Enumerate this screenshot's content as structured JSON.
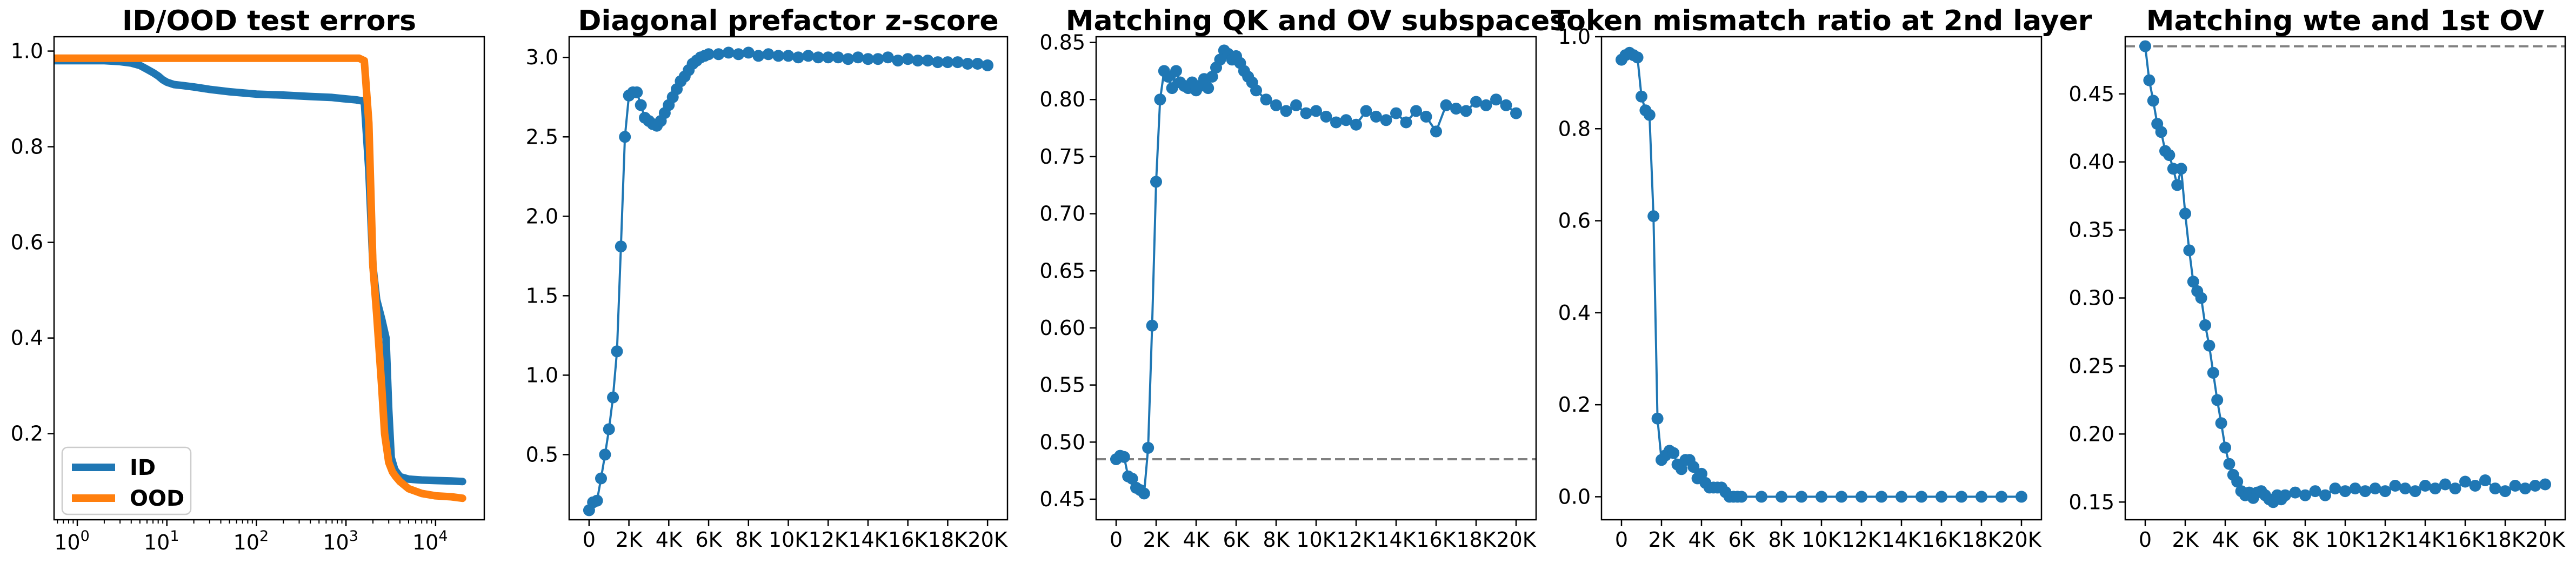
{
  "chart_data": [
    {
      "type": "line",
      "title": "ID/OOD test errors",
      "xscale": "log",
      "xlim": [
        0.55,
        35000
      ],
      "ylim": [
        0.02,
        1.03
      ],
      "x_ticks": [
        1,
        10,
        100,
        1000,
        10000
      ],
      "x_tick_labels": [
        {
          "b": "10",
          "e": "0"
        },
        {
          "b": "10",
          "e": "1"
        },
        {
          "b": "10",
          "e": "2"
        },
        {
          "b": "10",
          "e": "3"
        },
        {
          "b": "10",
          "e": "4"
        }
      ],
      "y_ticks": [
        0.2,
        0.4,
        0.6,
        0.8,
        1.0
      ],
      "y_tick_labels": [
        "0.2",
        "0.4",
        "0.6",
        "0.8",
        "1.0"
      ],
      "legend_position": "lower-left",
      "series": [
        {
          "name": "ID",
          "color": "#1f77b4",
          "x": [
            0.55,
            1,
            2,
            3,
            4,
            5,
            6,
            7,
            8,
            9,
            10,
            12,
            15,
            20,
            30,
            50,
            100,
            200,
            400,
            700,
            1000,
            1300,
            1600,
            1800,
            2000,
            2200,
            2500,
            2800,
            3000,
            3200,
            3500,
            4000,
            5000,
            7000,
            10000,
            15000,
            20000
          ],
          "y": [
            0.98,
            0.98,
            0.98,
            0.978,
            0.975,
            0.97,
            0.962,
            0.955,
            0.948,
            0.94,
            0.935,
            0.93,
            0.928,
            0.925,
            0.92,
            0.915,
            0.91,
            0.908,
            0.905,
            0.903,
            0.9,
            0.898,
            0.895,
            0.75,
            0.55,
            0.48,
            0.44,
            0.4,
            0.25,
            0.15,
            0.125,
            0.11,
            0.105,
            0.103,
            0.102,
            0.101,
            0.1
          ]
        },
        {
          "name": "OOD",
          "color": "#ff7f0e",
          "x": [
            0.55,
            1,
            10,
            100,
            1000,
            1400,
            1600,
            1800,
            2000,
            2200,
            2500,
            2700,
            3000,
            3300,
            3600,
            4000,
            5000,
            7000,
            10000,
            15000,
            20000
          ],
          "y": [
            0.985,
            0.985,
            0.985,
            0.985,
            0.985,
            0.985,
            0.98,
            0.85,
            0.55,
            0.45,
            0.3,
            0.2,
            0.14,
            0.12,
            0.11,
            0.1,
            0.085,
            0.075,
            0.07,
            0.068,
            0.065
          ]
        }
      ]
    },
    {
      "type": "line",
      "title": "Diagonal prefactor z-score",
      "xlim": [
        -1000,
        21000
      ],
      "ylim": [
        0.09,
        3.13
      ],
      "x_ticks": [
        0,
        2000,
        4000,
        6000,
        8000,
        10000,
        12000,
        14000,
        16000,
        18000,
        20000
      ],
      "x_tick_labels": [
        "0",
        "2K",
        "4K",
        "6K",
        "8K",
        "10K",
        "12K",
        "14K",
        "16K",
        "18K",
        "20K"
      ],
      "y_ticks": [
        0.5,
        1.0,
        1.5,
        2.0,
        2.5,
        3.0
      ],
      "y_tick_labels": [
        "0.5",
        "1.0",
        "1.5",
        "2.0",
        "2.5",
        "3.0"
      ],
      "series": [
        {
          "color": "#1f77b4",
          "x": [
            0,
            200,
            400,
            600,
            800,
            1000,
            1200,
            1400,
            1600,
            1800,
            2000,
            2200,
            2400,
            2600,
            2800,
            3000,
            3200,
            3400,
            3600,
            3800,
            4000,
            4200,
            4400,
            4600,
            4800,
            5000,
            5200,
            5400,
            5600,
            5800,
            6000,
            6500,
            7000,
            7500,
            8000,
            8500,
            9000,
            9500,
            10000,
            10500,
            11000,
            11500,
            12000,
            12500,
            13000,
            13500,
            14000,
            14500,
            15000,
            15500,
            16000,
            16500,
            17000,
            17500,
            18000,
            18500,
            19000,
            19500,
            20000
          ],
          "y": [
            0.15,
            0.2,
            0.21,
            0.35,
            0.5,
            0.66,
            0.86,
            1.15,
            1.81,
            2.5,
            2.76,
            2.78,
            2.78,
            2.7,
            2.62,
            2.6,
            2.58,
            2.57,
            2.6,
            2.65,
            2.7,
            2.75,
            2.8,
            2.85,
            2.88,
            2.92,
            2.96,
            2.98,
            3.0,
            3.01,
            3.02,
            3.02,
            3.03,
            3.02,
            3.03,
            3.01,
            3.02,
            3.01,
            3.01,
            3.0,
            3.01,
            3.0,
            3.0,
            3.0,
            2.99,
            3.0,
            2.99,
            2.99,
            3.0,
            2.98,
            2.99,
            2.98,
            2.98,
            2.97,
            2.97,
            2.97,
            2.96,
            2.96,
            2.95
          ]
        }
      ]
    },
    {
      "type": "line",
      "title": "Matching QK and OV subspaces",
      "xlim": [
        -1000,
        21000
      ],
      "ylim": [
        0.432,
        0.855
      ],
      "x_ticks": [
        0,
        2000,
        4000,
        6000,
        8000,
        10000,
        12000,
        14000,
        16000,
        18000,
        20000
      ],
      "x_tick_labels": [
        "0",
        "2K",
        "4K",
        "6K",
        "8K",
        "10K",
        "12K",
        "14K",
        "16K",
        "18K",
        "20K"
      ],
      "y_ticks": [
        0.45,
        0.5,
        0.55,
        0.6,
        0.65,
        0.7,
        0.75,
        0.8,
        0.85
      ],
      "y_tick_labels": [
        "0.45",
        "0.50",
        "0.55",
        "0.60",
        "0.65",
        "0.70",
        "0.75",
        "0.80",
        "0.85"
      ],
      "reference_line": {
        "y": 0.485,
        "style": "dashed",
        "color": "#808080"
      },
      "series": [
        {
          "color": "#1f77b4",
          "x": [
            0,
            200,
            400,
            600,
            800,
            1000,
            1200,
            1400,
            1600,
            1800,
            2000,
            2200,
            2400,
            2600,
            2800,
            3000,
            3200,
            3400,
            3600,
            3800,
            4000,
            4200,
            4400,
            4600,
            4800,
            5000,
            5200,
            5400,
            5600,
            5800,
            6000,
            6200,
            6400,
            6600,
            6800,
            7000,
            7500,
            8000,
            8500,
            9000,
            9500,
            10000,
            10500,
            11000,
            11500,
            12000,
            12500,
            13000,
            13500,
            14000,
            14500,
            15000,
            15500,
            16000,
            16500,
            17000,
            17500,
            18000,
            18500,
            19000,
            19500,
            20000
          ],
          "y": [
            0.485,
            0.488,
            0.487,
            0.47,
            0.468,
            0.46,
            0.458,
            0.455,
            0.495,
            0.602,
            0.728,
            0.8,
            0.825,
            0.82,
            0.81,
            0.825,
            0.815,
            0.812,
            0.81,
            0.815,
            0.808,
            0.812,
            0.818,
            0.81,
            0.82,
            0.828,
            0.835,
            0.843,
            0.84,
            0.835,
            0.838,
            0.832,
            0.825,
            0.82,
            0.815,
            0.808,
            0.8,
            0.795,
            0.79,
            0.795,
            0.788,
            0.79,
            0.785,
            0.78,
            0.782,
            0.778,
            0.79,
            0.785,
            0.782,
            0.788,
            0.78,
            0.79,
            0.785,
            0.772,
            0.795,
            0.792,
            0.79,
            0.798,
            0.795,
            0.8,
            0.795,
            0.788
          ]
        }
      ]
    },
    {
      "type": "line",
      "title": "Token mismatch ratio at 2nd layer",
      "xlim": [
        -1000,
        21000
      ],
      "ylim": [
        -0.05,
        1.0
      ],
      "x_ticks": [
        0,
        2000,
        4000,
        6000,
        8000,
        10000,
        12000,
        14000,
        16000,
        18000,
        20000
      ],
      "x_tick_labels": [
        "0",
        "2K",
        "4K",
        "6K",
        "8K",
        "10K",
        "12K",
        "14K",
        "16K",
        "18K",
        "20K"
      ],
      "y_ticks": [
        0.0,
        0.2,
        0.4,
        0.6,
        0.8,
        1.0
      ],
      "y_tick_labels": [
        "0.0",
        "0.2",
        "0.4",
        "0.6",
        "0.8",
        "1.0"
      ],
      "series": [
        {
          "color": "#1f77b4",
          "x": [
            0,
            200,
            400,
            600,
            800,
            1000,
            1200,
            1400,
            1600,
            1800,
            2000,
            2200,
            2400,
            2600,
            2800,
            3000,
            3200,
            3400,
            3600,
            3800,
            4000,
            4200,
            4400,
            4600,
            4800,
            5000,
            5200,
            5400,
            5600,
            5800,
            6000,
            7000,
            8000,
            9000,
            10000,
            11000,
            12000,
            13000,
            14000,
            15000,
            16000,
            17000,
            18000,
            19000,
            20000
          ],
          "y": [
            0.95,
            0.96,
            0.965,
            0.96,
            0.955,
            0.87,
            0.84,
            0.83,
            0.61,
            0.17,
            0.08,
            0.09,
            0.1,
            0.095,
            0.07,
            0.06,
            0.08,
            0.08,
            0.065,
            0.04,
            0.05,
            0.03,
            0.02,
            0.02,
            0.02,
            0.02,
            0.01,
            0.0,
            0.0,
            0.0,
            0.0,
            0.0,
            0.0,
            0.0,
            0.0,
            0.0,
            0.0,
            0.0,
            0.0,
            0.0,
            0.0,
            0.0,
            0.0,
            0.0,
            0.0
          ]
        }
      ]
    },
    {
      "type": "line",
      "title": "Matching wte and 1st OV",
      "xlim": [
        -1000,
        21000
      ],
      "ylim": [
        0.137,
        0.492
      ],
      "x_ticks": [
        0,
        2000,
        4000,
        6000,
        8000,
        10000,
        12000,
        14000,
        16000,
        18000,
        20000
      ],
      "x_tick_labels": [
        "0",
        "2K",
        "4K",
        "6K",
        "8K",
        "10K",
        "12K",
        "14K",
        "16K",
        "18K",
        "20K"
      ],
      "y_ticks": [
        0.15,
        0.2,
        0.25,
        0.3,
        0.35,
        0.4,
        0.45
      ],
      "y_tick_labels": [
        "0.15",
        "0.20",
        "0.25",
        "0.30",
        "0.35",
        "0.40",
        "0.45"
      ],
      "reference_line": {
        "y": 0.485,
        "style": "dashed",
        "color": "#808080"
      },
      "series": [
        {
          "color": "#1f77b4",
          "x": [
            0,
            200,
            400,
            600,
            800,
            1000,
            1200,
            1400,
            1600,
            1800,
            2000,
            2200,
            2400,
            2600,
            2800,
            3000,
            3200,
            3400,
            3600,
            3800,
            4000,
            4200,
            4400,
            4600,
            4800,
            5000,
            5200,
            5400,
            5600,
            5800,
            6000,
            6200,
            6400,
            6600,
            6800,
            7000,
            7500,
            8000,
            8500,
            9000,
            9500,
            10000,
            10500,
            11000,
            11500,
            12000,
            12500,
            13000,
            13500,
            14000,
            14500,
            15000,
            15500,
            16000,
            16500,
            17000,
            17500,
            18000,
            18500,
            19000,
            19500,
            20000
          ],
          "y": [
            0.485,
            0.46,
            0.445,
            0.428,
            0.422,
            0.408,
            0.405,
            0.395,
            0.383,
            0.395,
            0.362,
            0.335,
            0.312,
            0.305,
            0.3,
            0.28,
            0.265,
            0.245,
            0.225,
            0.208,
            0.19,
            0.178,
            0.17,
            0.165,
            0.158,
            0.155,
            0.157,
            0.153,
            0.157,
            0.158,
            0.155,
            0.152,
            0.15,
            0.155,
            0.152,
            0.155,
            0.157,
            0.155,
            0.158,
            0.155,
            0.16,
            0.158,
            0.16,
            0.158,
            0.16,
            0.158,
            0.162,
            0.16,
            0.158,
            0.162,
            0.16,
            0.163,
            0.16,
            0.165,
            0.162,
            0.166,
            0.16,
            0.158,
            0.162,
            0.16,
            0.162,
            0.163
          ]
        }
      ]
    }
  ]
}
